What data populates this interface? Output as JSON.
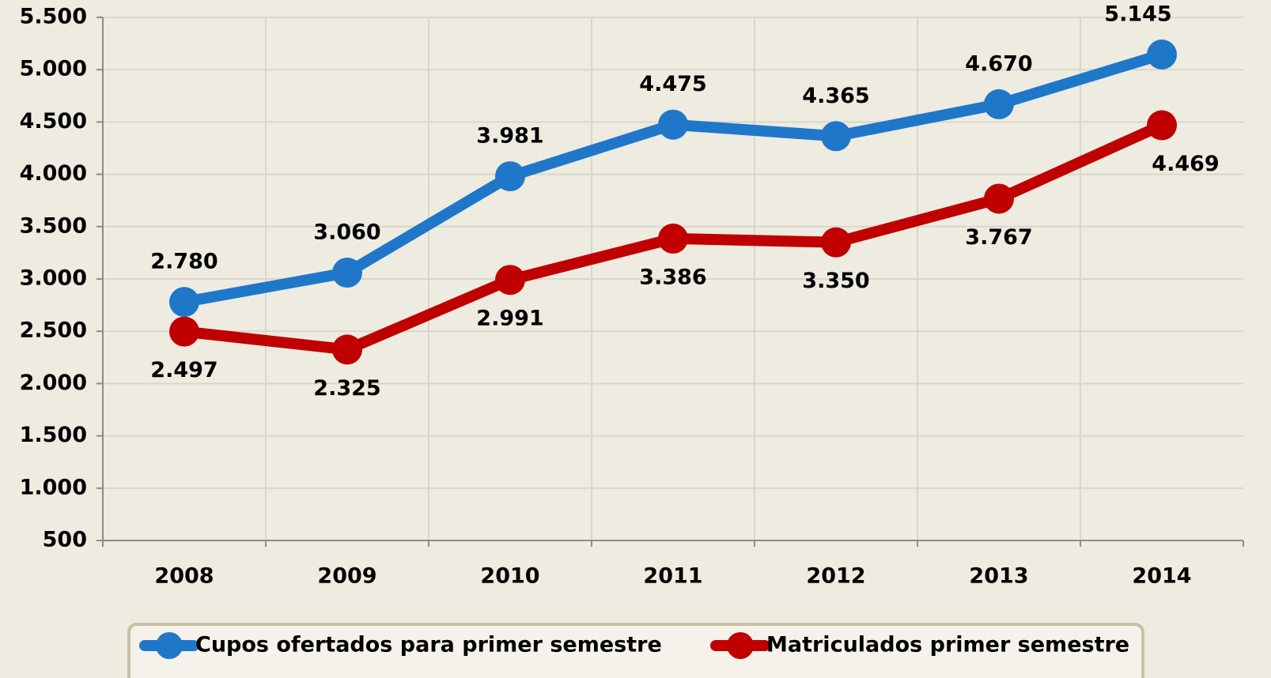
{
  "chart_data": {
    "type": "line",
    "categories": [
      "2008",
      "2009",
      "2010",
      "2011",
      "2012",
      "2013",
      "2014"
    ],
    "series": [
      {
        "name": "Cupos ofertados para primer semestre",
        "color": "#1f77c9",
        "values": [
          2780,
          3060,
          3981,
          4475,
          4365,
          4670,
          5145
        ],
        "value_labels": [
          "2.780",
          "3.060",
          "3.981",
          "4.475",
          "4.365",
          "4.670",
          "5.145"
        ]
      },
      {
        "name": "Matriculados primer semestre",
        "color": "#c00000",
        "values": [
          2497,
          2325,
          2991,
          3386,
          3350,
          3767,
          4469
        ],
        "value_labels": [
          "2.497",
          "2.325",
          "2.991",
          "3.386",
          "3.350",
          "3.767",
          "4.469"
        ]
      }
    ],
    "ylim": [
      500,
      5500
    ],
    "yticks": [
      500,
      {
        "value": 1000,
        "label": "1.000"
      },
      {
        "value": 1500,
        "label": "1.500"
      },
      {
        "value": 2000,
        "label": "2.000"
      },
      {
        "value": 2500,
        "label": "2.500"
      },
      {
        "value": 3000,
        "label": "3.000"
      },
      {
        "value": 3500,
        "label": "3.500"
      },
      {
        "value": 4000,
        "label": "4.000"
      },
      {
        "value": 4500,
        "label": "4.500"
      },
      {
        "value": 5000,
        "label": "5.000"
      },
      {
        "value": 5500,
        "label": "5.500"
      }
    ],
    "grid": true,
    "legend": "bottom"
  }
}
